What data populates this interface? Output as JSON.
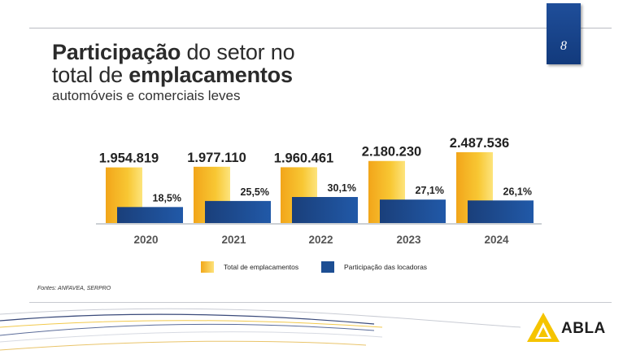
{
  "page_number": "8",
  "title": {
    "line1_bold": "Participação",
    "line1_rest": " do setor no",
    "line2_rest": "total de ",
    "line2_bold": "emplacamentos"
  },
  "subtitle": "automóveis e comerciais leves",
  "source": "Fontes: ANFAVEA, SERPRO",
  "logo_text": "ABLA",
  "colors": {
    "total_bar": "#f7b81e",
    "share_bar": "#1d4e93",
    "page_badge": "#1a4488",
    "logo_yellow": "#f5c400"
  },
  "icons": {
    "logo": "abla-triangle-logo"
  },
  "chart_data": {
    "type": "bar",
    "categories": [
      "2020",
      "2021",
      "2022",
      "2023",
      "2024"
    ],
    "series": [
      {
        "name": "Total de emplacamentos",
        "values": [
          1954819,
          1977110,
          1960461,
          2180230,
          2487536
        ],
        "labels": [
          "1.954.819",
          "1.977.110",
          "1.960.461",
          "2.180.230",
          "2.487.536"
        ],
        "color": "#f7b81e"
      },
      {
        "name": "Participação das locadoras",
        "values": [
          18.5,
          25.5,
          30.1,
          27.1,
          26.1
        ],
        "labels": [
          "18,5%",
          "25,5%",
          "30,1%",
          "27,1%",
          "26,1%"
        ],
        "color": "#1d4e93"
      }
    ],
    "legend": "bottom"
  }
}
